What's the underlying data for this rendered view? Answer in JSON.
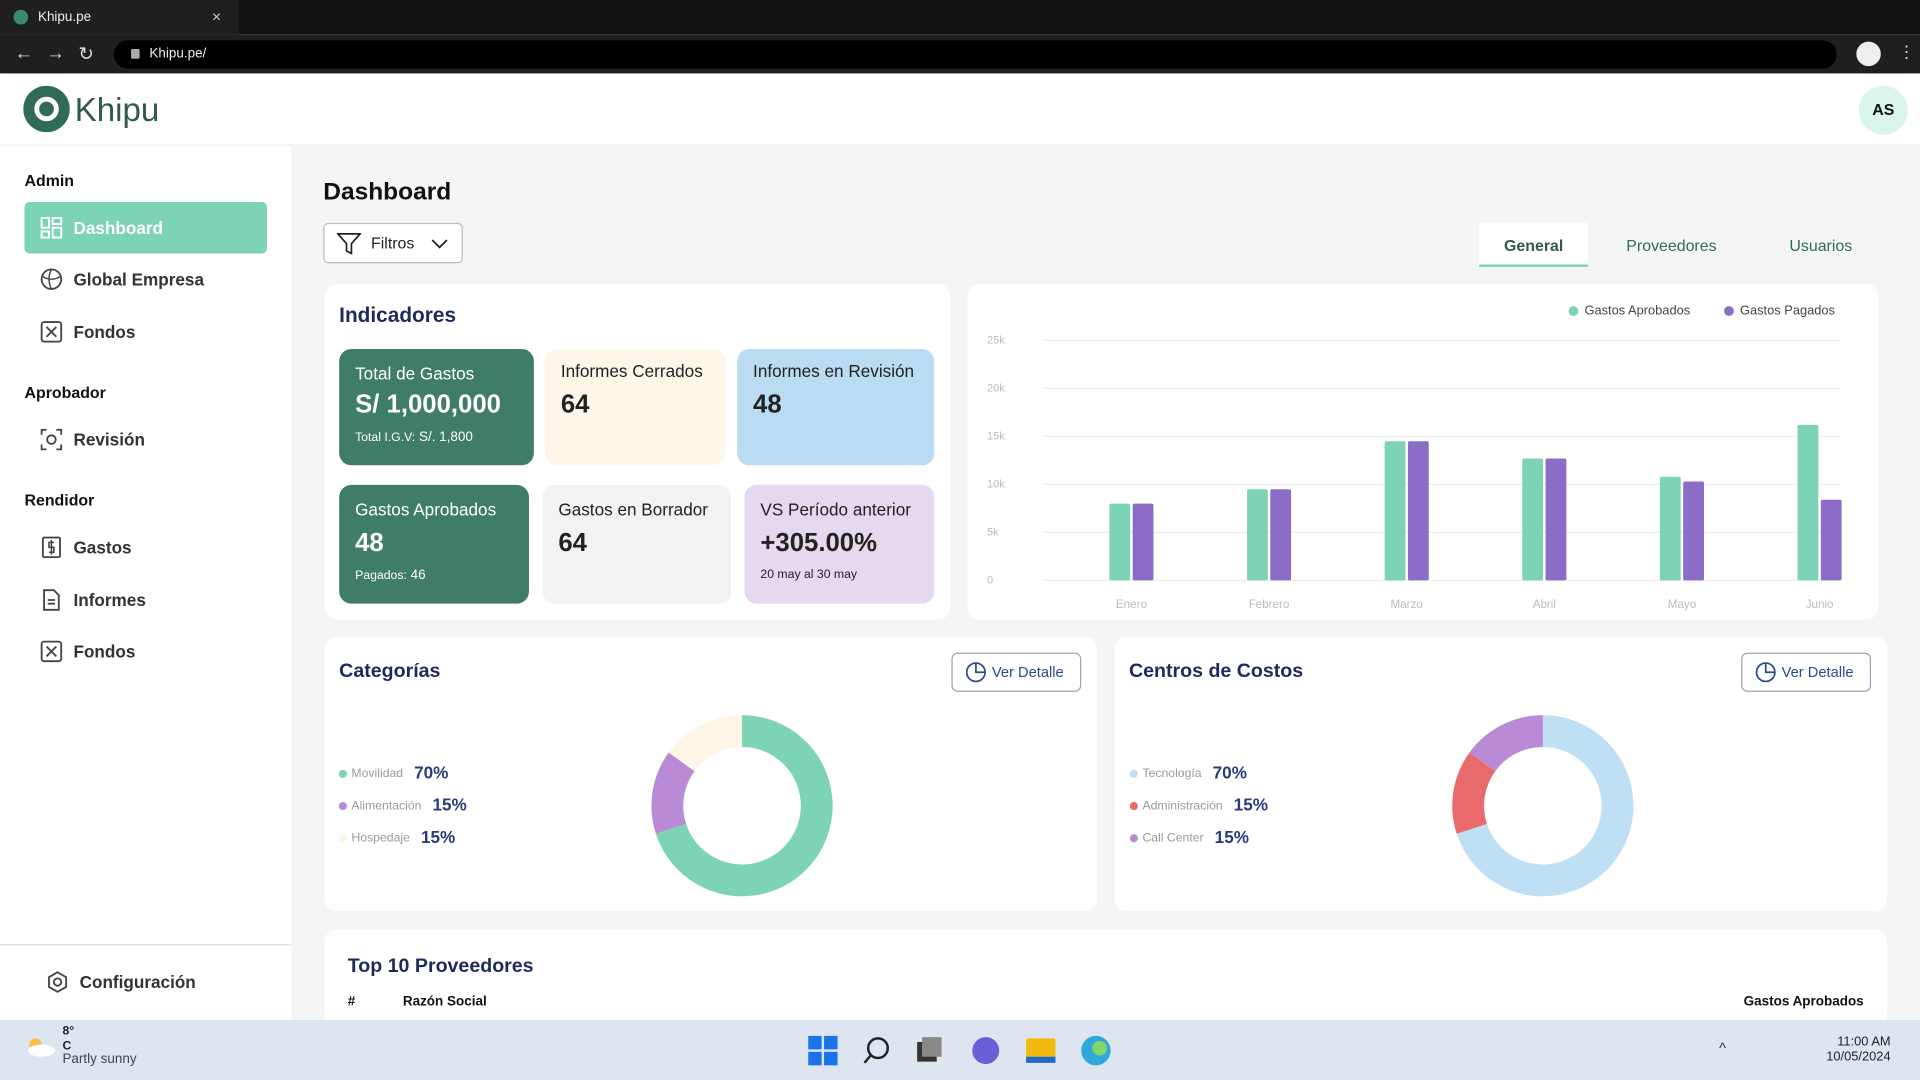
{
  "browser": {
    "tab_title": "Khipu.pe",
    "url": "Khipu.pe/"
  },
  "header": {
    "logo": "Khipu",
    "avatar": "AS"
  },
  "sidebar": {
    "sections": [
      {
        "title": "Admin",
        "items": [
          "Dashboard",
          "Global Empresa",
          "Fondos"
        ]
      },
      {
        "title": "Aprobador",
        "items": [
          "Revisión"
        ]
      },
      {
        "title": "Rendidor",
        "items": [
          "Gastos",
          "Informes",
          "Fondos"
        ]
      }
    ],
    "settings": "Configuración"
  },
  "page": {
    "title": "Dashboard",
    "filter": "Filtros",
    "tabs": [
      "General",
      "Proveedores",
      "Usuarios"
    ]
  },
  "indicators": {
    "title": "Indicadores",
    "cards": [
      {
        "label": "Total de Gastos",
        "value": "S/ 1,000,000",
        "note_label": "Total I.G.V:",
        "note_value": "S/. 1,800"
      },
      {
        "label": "Informes Cerrados",
        "value": 64
      },
      {
        "label": "Informes en Revisión",
        "value": 48
      },
      {
        "label": "Gastos Aprobados",
        "value": 48,
        "note_label": "Pagados:",
        "note_value": 46
      },
      {
        "label": "Gastos en Borrador",
        "value": 64
      },
      {
        "label": "VS Período anterior",
        "value": "+305.00%",
        "note_label": "20 may al 30 may"
      }
    ]
  },
  "detail_button": "Ver Detalle",
  "chart_data": [
    {
      "type": "bar",
      "categories": [
        "Enero",
        "Febrero",
        "Marzo",
        "Abril",
        "Mayo",
        "Junio"
      ],
      "series": [
        {
          "name": "Gastos Aprobados",
          "color": "#7dd3b6",
          "values": [
            8000,
            9500,
            14500,
            12700,
            10800,
            16200
          ]
        },
        {
          "name": "Gastos Pagados",
          "color": "#8b6cc6",
          "values": [
            8000,
            9500,
            14500,
            12700,
            10300,
            8400
          ]
        }
      ],
      "ylim": [
        0,
        25000
      ],
      "yticks": [
        0,
        {
          "value": 5000,
          "label": "5k"
        },
        {
          "value": 10000,
          "label": "10k"
        },
        {
          "value": 15000,
          "label": "15k"
        },
        {
          "value": 20000,
          "label": "20k"
        },
        {
          "value": 25000,
          "label": "25k"
        }
      ],
      "grid": true,
      "legend": "top-right"
    },
    {
      "type": "pie",
      "donut": true,
      "title": "Categorías",
      "categories": [
        "Movilidad",
        "Alimentación",
        "Hospedaje"
      ],
      "values": [
        70,
        15,
        15
      ],
      "value_labels": [
        "70%",
        "15%",
        "15%"
      ],
      "colors": [
        "#7dd3b6",
        "#b98bd6",
        "#fdf5e6"
      ]
    },
    {
      "type": "pie",
      "donut": true,
      "title": "Centros de Costos",
      "categories": [
        "Tecnología",
        "Administración",
        "Call Center"
      ],
      "values": [
        70,
        15,
        15
      ],
      "value_labels": [
        "70%",
        "15%",
        "15%"
      ],
      "colors": [
        "#bfe0f4",
        "#e86a6a",
        "#b98bd6"
      ]
    }
  ],
  "table": {
    "title": "Top 10 Proveedores",
    "columns": [
      "#",
      "Razón Social",
      "Gastos Aprobados"
    ]
  },
  "taskbar": {
    "temperature": "8°",
    "unit": "C",
    "weather": "Partly sunny",
    "time": "11:00 AM",
    "date": "10/05/2024"
  }
}
